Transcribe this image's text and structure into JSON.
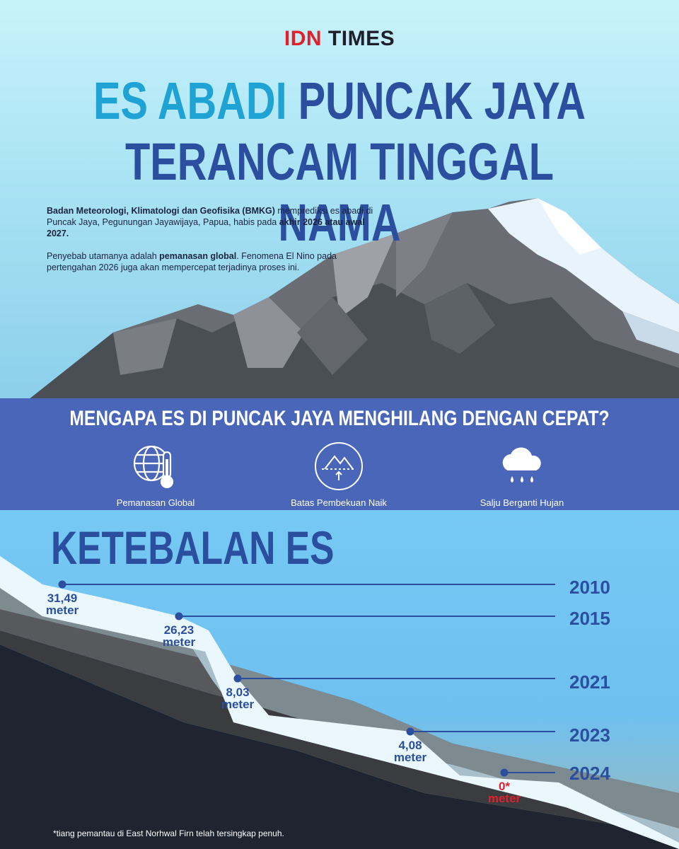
{
  "header": {
    "logo_red": "IDN",
    "logo_dark": "TIMES",
    "title_highlight": "ES ABADI",
    "title_rest": "PUNCAK JAYA",
    "title_line2": "TERANCAM TINGGAL NAMA"
  },
  "intro": {
    "p1_bold": "Badan Meteorologi, Klimatologi dan Geofisika (BMKG)",
    "p1_text": "memprediksi es abadi di Puncak Jaya, Pegunungan Jayawijaya, Papua, habis pada",
    "p1_bold_end": "akhir 2026 atau awal 2027.",
    "p2_text": "Penyebab utamanya adalah",
    "p2_bold": "pemanasan global",
    "p2_text2": ". Fenomena El Nino pada pertengahan 2026 juga akan mempercepat terjadinya proses ini."
  },
  "reasons": {
    "title": "MENGAPA ES DI PUNCAK JAYA MENGHILANG DENGAN CEPAT?",
    "items": [
      {
        "label": "Pemanasan Global",
        "icon": "globe-thermometer-icon"
      },
      {
        "label": "Batas Pembekuan Naik",
        "icon": "mountain-freezing-line-icon"
      },
      {
        "label": "Salju Berganti Hujan",
        "icon": "rain-cloud-icon"
      }
    ]
  },
  "chart_data": {
    "type": "line",
    "title": "KETEBALAN ES",
    "unit": "meter",
    "x": [
      "2010",
      "2015",
      "2021",
      "2023",
      "2024"
    ],
    "values": [
      31.49,
      26.23,
      8.03,
      4.08,
      0
    ],
    "value_labels": [
      "31,49",
      "26,23",
      "8,03",
      "4,08",
      "0*"
    ],
    "highlight_color": "#e3202a",
    "accent_color": "#2b4f9e",
    "footnote": "*tiang pemantau di East Norhwal Firn telah tersingkap penuh."
  }
}
